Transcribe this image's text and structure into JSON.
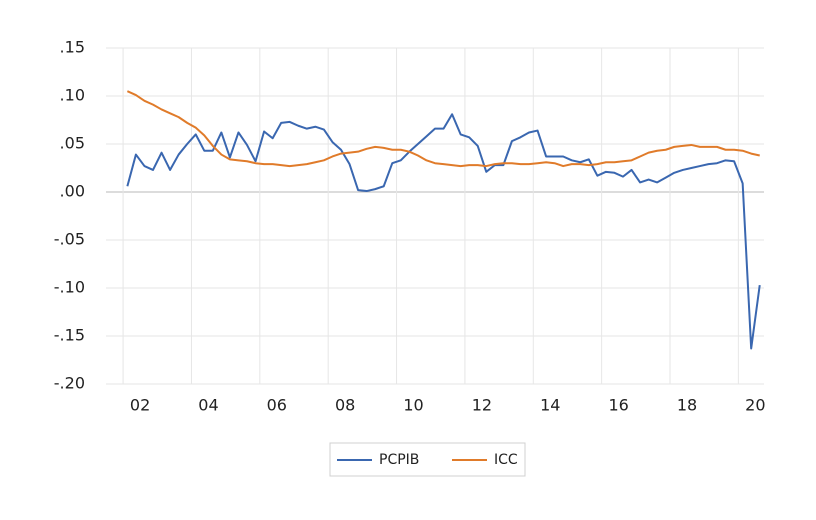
{
  "chart_data": {
    "type": "line",
    "x": [
      2002.125,
      2002.375,
      2002.625,
      2002.875,
      2003.125,
      2003.375,
      2003.625,
      2003.875,
      2004.125,
      2004.375,
      2004.625,
      2004.875,
      2005.125,
      2005.375,
      2005.625,
      2005.875,
      2006.125,
      2006.375,
      2006.625,
      2006.875,
      2007.125,
      2007.375,
      2007.625,
      2007.875,
      2008.125,
      2008.375,
      2008.625,
      2008.875,
      2009.125,
      2009.375,
      2009.625,
      2009.875,
      2010.125,
      2010.375,
      2010.625,
      2010.875,
      2011.125,
      2011.375,
      2011.625,
      2011.875,
      2012.125,
      2012.375,
      2012.625,
      2012.875,
      2013.125,
      2013.375,
      2013.625,
      2013.875,
      2014.125,
      2014.375,
      2014.625,
      2014.875,
      2015.125,
      2015.375,
      2015.625,
      2015.875,
      2016.125,
      2016.375,
      2016.625,
      2016.875,
      2017.125,
      2017.375,
      2017.625,
      2017.875,
      2018.125,
      2018.375,
      2018.625,
      2018.875,
      2019.125,
      2019.375,
      2019.625,
      2019.875,
      2020.125,
      2020.375,
      2020.625
    ],
    "series": [
      {
        "name": "PCPIB",
        "color": "#3a67b0",
        "values": [
          0.006,
          0.039,
          0.027,
          0.023,
          0.041,
          0.023,
          0.039,
          0.05,
          0.06,
          0.043,
          0.043,
          0.062,
          0.036,
          0.062,
          0.049,
          0.032,
          0.063,
          0.056,
          0.072,
          0.073,
          0.069,
          0.066,
          0.068,
          0.065,
          0.052,
          0.044,
          0.029,
          0.002,
          0.001,
          0.003,
          0.006,
          0.03,
          0.033,
          0.042,
          0.05,
          0.058,
          0.066,
          0.066,
          0.081,
          0.06,
          0.057,
          0.048,
          0.021,
          0.028,
          0.028,
          0.053,
          0.057,
          0.062,
          0.064,
          0.037,
          0.037,
          0.037,
          0.033,
          0.031,
          0.034,
          0.017,
          0.021,
          0.02,
          0.016,
          0.023,
          0.01,
          0.013,
          0.01,
          0.015,
          0.02,
          0.023,
          0.025,
          0.027,
          0.029,
          0.03,
          0.033,
          0.032,
          0.009,
          -0.163,
          -0.097
        ]
      },
      {
        "name": "ICC",
        "color": "#e07b2a",
        "values": [
          0.105,
          0.101,
          0.095,
          0.091,
          0.086,
          0.082,
          0.078,
          0.072,
          0.067,
          0.059,
          0.048,
          0.039,
          0.034,
          0.033,
          0.032,
          0.03,
          0.029,
          0.029,
          0.028,
          0.027,
          0.028,
          0.029,
          0.031,
          0.033,
          0.037,
          0.04,
          0.041,
          0.042,
          0.045,
          0.047,
          0.046,
          0.044,
          0.044,
          0.042,
          0.038,
          0.033,
          0.03,
          0.029,
          0.028,
          0.027,
          0.028,
          0.028,
          0.027,
          0.029,
          0.03,
          0.03,
          0.029,
          0.029,
          0.03,
          0.031,
          0.03,
          0.027,
          0.029,
          0.029,
          0.028,
          0.029,
          0.031,
          0.031,
          0.032,
          0.033,
          0.037,
          0.041,
          0.043,
          0.044,
          0.047,
          0.048,
          0.049,
          0.047,
          0.047,
          0.047,
          0.044,
          0.044,
          0.043,
          0.04,
          0.038
        ]
      }
    ],
    "xlim": [
      2001.5,
      2020.75
    ],
    "xticks": [
      {
        "value": 2002,
        "label": "02"
      },
      {
        "value": 2004,
        "label": "04"
      },
      {
        "value": 2006,
        "label": "06"
      },
      {
        "value": 2008,
        "label": "08"
      },
      {
        "value": 2010,
        "label": "10"
      },
      {
        "value": 2012,
        "label": "12"
      },
      {
        "value": 2014,
        "label": "14"
      },
      {
        "value": 2016,
        "label": "16"
      },
      {
        "value": 2018,
        "label": "18"
      },
      {
        "value": 2020,
        "label": "20"
      }
    ],
    "ylim": [
      -0.2,
      0.15
    ],
    "yticks": [
      {
        "value": 0.15,
        "label": ".15"
      },
      {
        "value": 0.1,
        "label": ".10"
      },
      {
        "value": 0.05,
        "label": ".05"
      },
      {
        "value": 0,
        "label": ".00"
      },
      {
        "value": -0.05,
        "label": "-.05"
      },
      {
        "value": -0.1,
        "label": "-.10"
      },
      {
        "value": -0.15,
        "label": "-.15"
      },
      {
        "value": -0.2,
        "label": "-.20"
      }
    ],
    "grid": true,
    "legend": "bottom"
  }
}
